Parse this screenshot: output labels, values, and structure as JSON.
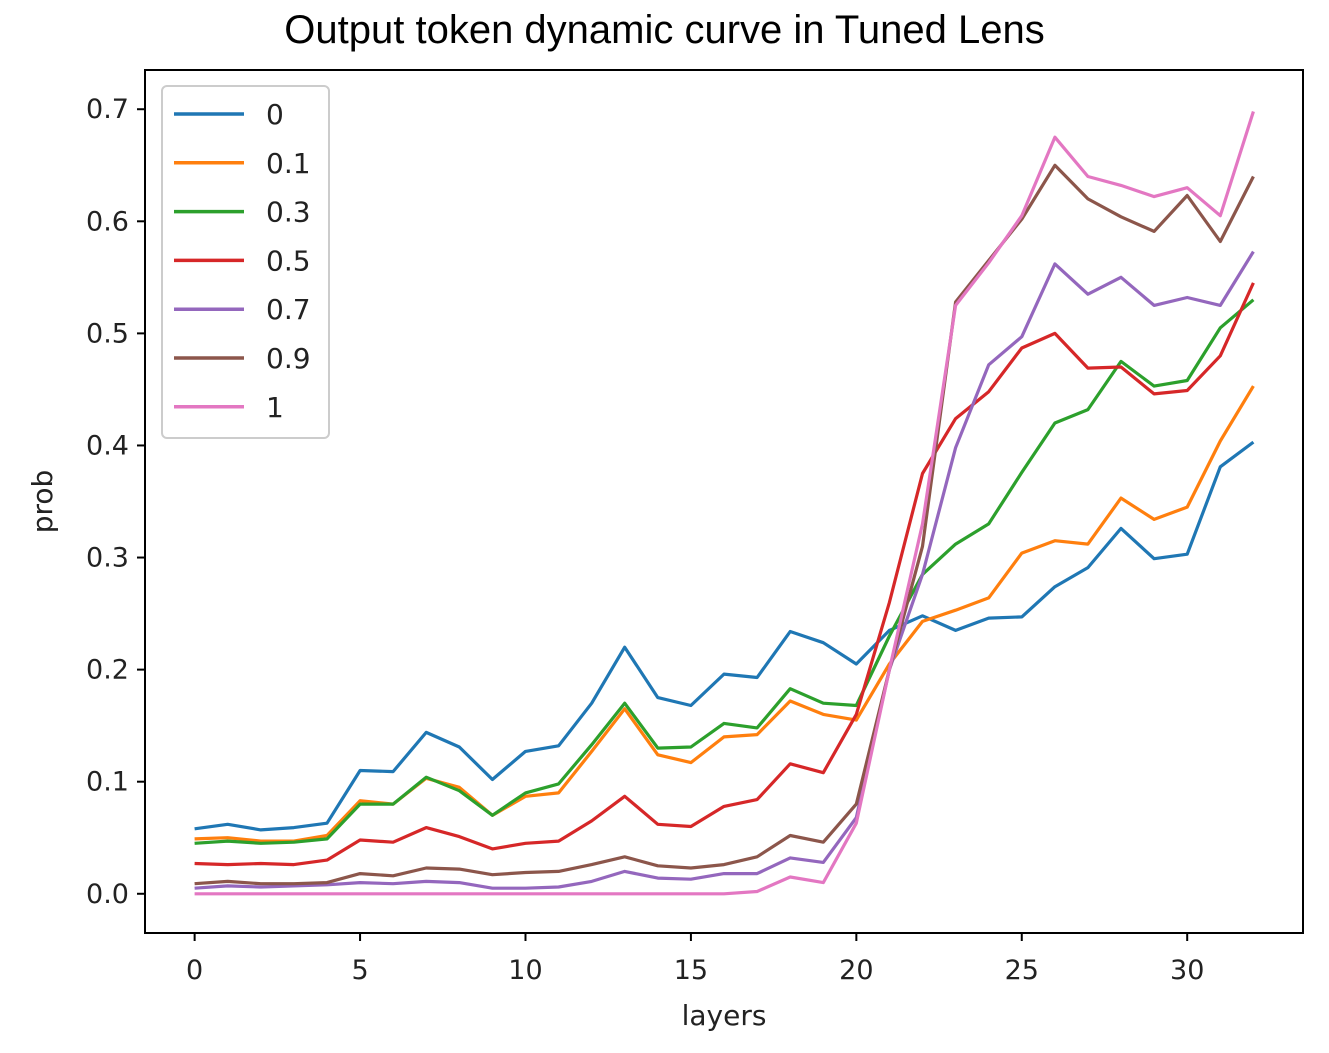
{
  "chart_data": {
    "type": "line",
    "title": "Output token dynamic curve in Tuned Lens",
    "xlabel": "layers",
    "ylabel": "prob",
    "xlim": [
      -1.5,
      33.5
    ],
    "ylim": [
      -0.035,
      0.735
    ],
    "xticks": [
      0,
      5,
      10,
      15,
      20,
      25,
      30
    ],
    "yticks": [
      0.0,
      0.1,
      0.2,
      0.3,
      0.4,
      0.5,
      0.6,
      0.7
    ],
    "xtick_labels": [
      "0",
      "5",
      "10",
      "15",
      "20",
      "25",
      "30"
    ],
    "ytick_labels": [
      "0.0",
      "0.1",
      "0.2",
      "0.3",
      "0.4",
      "0.5",
      "0.6",
      "0.7"
    ],
    "grid": false,
    "legend_position": "upper-left",
    "x": [
      0,
      1,
      2,
      3,
      4,
      5,
      6,
      7,
      8,
      9,
      10,
      11,
      12,
      13,
      14,
      15,
      16,
      17,
      18,
      19,
      20,
      21,
      22,
      23,
      24,
      25,
      26,
      27,
      28,
      29,
      30,
      31,
      32
    ],
    "series": [
      {
        "name": "0",
        "color": "#1f77b4",
        "values": [
          0.058,
          0.062,
          0.057,
          0.059,
          0.063,
          0.11,
          0.109,
          0.144,
          0.131,
          0.102,
          0.127,
          0.132,
          0.17,
          0.22,
          0.175,
          0.168,
          0.196,
          0.193,
          0.234,
          0.224,
          0.205,
          0.235,
          0.248,
          0.235,
          0.246,
          0.247,
          0.274,
          0.291,
          0.326,
          0.299,
          0.303,
          0.381,
          0.403
        ]
      },
      {
        "name": "0.1",
        "color": "#ff7f0e",
        "values": [
          0.049,
          0.05,
          0.047,
          0.047,
          0.052,
          0.083,
          0.08,
          0.103,
          0.095,
          0.07,
          0.087,
          0.09,
          0.127,
          0.165,
          0.124,
          0.117,
          0.14,
          0.142,
          0.172,
          0.16,
          0.155,
          0.205,
          0.243,
          0.253,
          0.264,
          0.304,
          0.315,
          0.312,
          0.353,
          0.334,
          0.345,
          0.404,
          0.453
        ]
      },
      {
        "name": "0.3",
        "color": "#2ca02c",
        "values": [
          0.045,
          0.047,
          0.045,
          0.046,
          0.049,
          0.08,
          0.08,
          0.104,
          0.092,
          0.07,
          0.09,
          0.098,
          0.133,
          0.17,
          0.13,
          0.131,
          0.152,
          0.148,
          0.183,
          0.17,
          0.168,
          0.23,
          0.285,
          0.312,
          0.33,
          0.376,
          0.42,
          0.432,
          0.475,
          0.453,
          0.458,
          0.505,
          0.53
        ]
      },
      {
        "name": "0.5",
        "color": "#d62728",
        "values": [
          0.027,
          0.026,
          0.027,
          0.026,
          0.03,
          0.048,
          0.046,
          0.059,
          0.051,
          0.04,
          0.045,
          0.047,
          0.065,
          0.087,
          0.062,
          0.06,
          0.078,
          0.084,
          0.116,
          0.108,
          0.16,
          0.26,
          0.375,
          0.424,
          0.448,
          0.487,
          0.5,
          0.469,
          0.47,
          0.446,
          0.449,
          0.48,
          0.545
        ]
      },
      {
        "name": "0.7",
        "color": "#9467bd",
        "values": [
          0.005,
          0.007,
          0.006,
          0.007,
          0.008,
          0.01,
          0.009,
          0.011,
          0.01,
          0.005,
          0.005,
          0.006,
          0.011,
          0.02,
          0.014,
          0.013,
          0.018,
          0.018,
          0.032,
          0.028,
          0.068,
          0.2,
          0.285,
          0.398,
          0.472,
          0.497,
          0.562,
          0.535,
          0.55,
          0.525,
          0.532,
          0.525,
          0.573
        ]
      },
      {
        "name": "0.9",
        "color": "#8c564b",
        "values": [
          0.009,
          0.011,
          0.009,
          0.009,
          0.01,
          0.018,
          0.016,
          0.023,
          0.022,
          0.017,
          0.019,
          0.02,
          0.026,
          0.033,
          0.025,
          0.023,
          0.026,
          0.033,
          0.052,
          0.046,
          0.08,
          0.2,
          0.31,
          0.528,
          0.565,
          0.602,
          0.65,
          0.62,
          0.604,
          0.591,
          0.623,
          0.582,
          0.64
        ]
      },
      {
        "name": "1",
        "color": "#e377c2",
        "values": [
          0.0,
          0.0,
          0.0,
          0.0,
          0.0,
          0.0,
          0.0,
          0.0,
          0.0,
          0.0,
          0.0,
          0.0,
          0.0,
          0.0,
          0.0,
          0.0,
          0.0,
          0.002,
          0.015,
          0.01,
          0.063,
          0.2,
          0.33,
          0.525,
          0.563,
          0.605,
          0.675,
          0.64,
          0.632,
          0.622,
          0.63,
          0.605,
          0.698
        ]
      }
    ]
  }
}
